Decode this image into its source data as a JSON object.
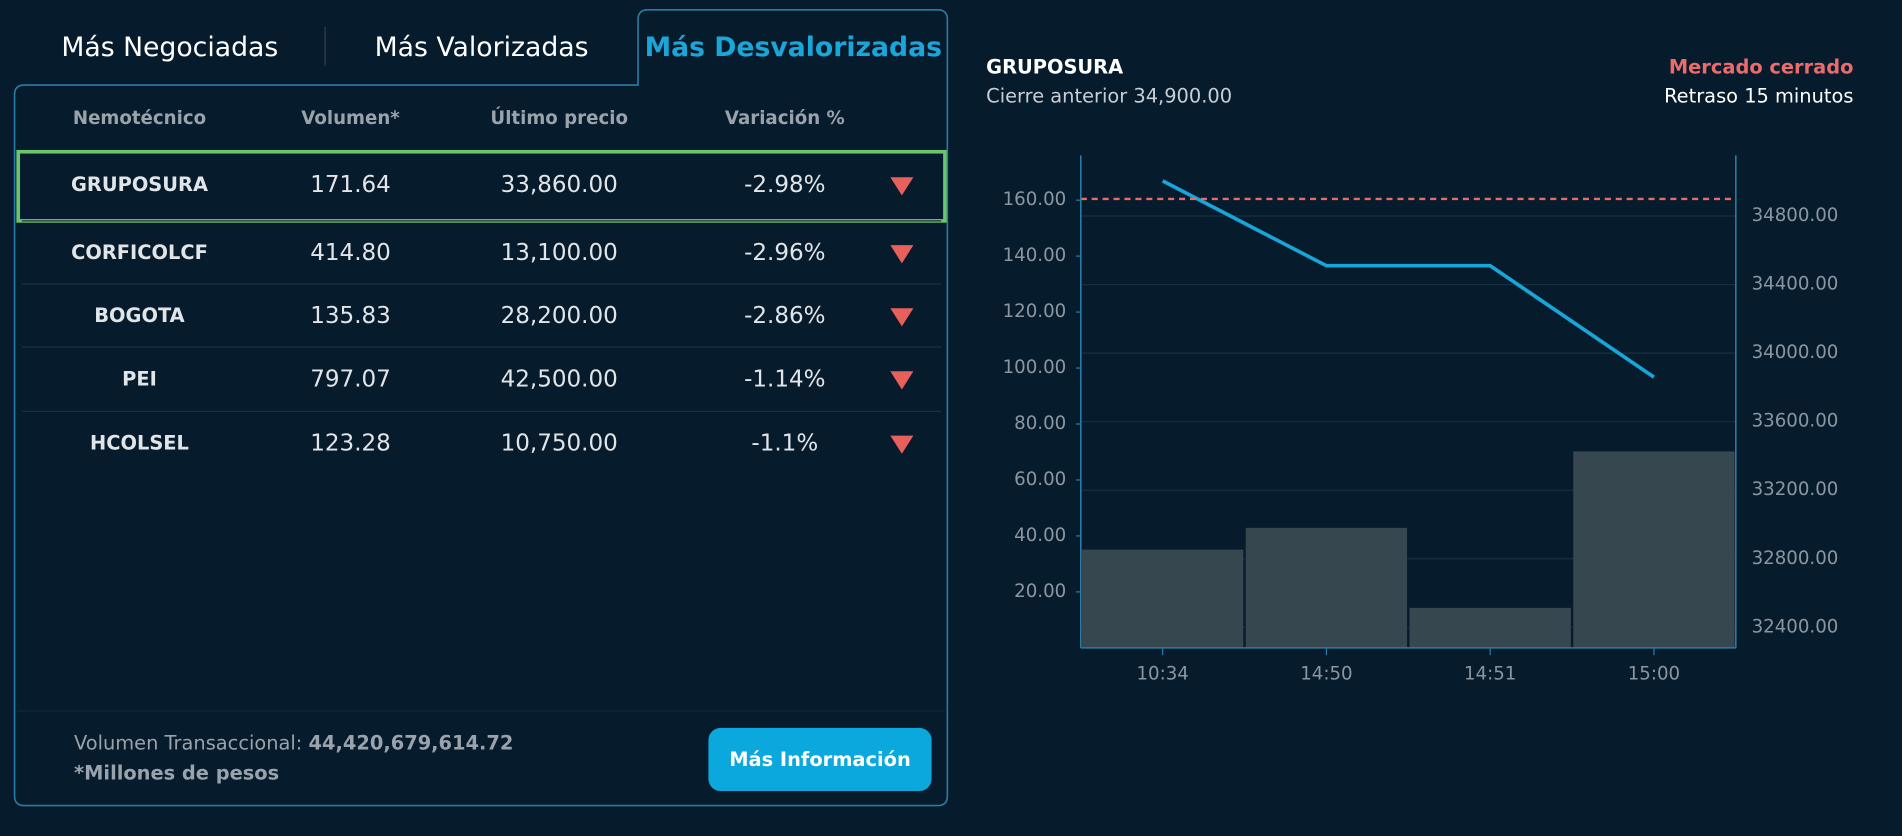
{
  "tabs": [
    "Más Negociadas",
    "Más Valorizadas",
    "Más Desvalorizadas"
  ],
  "active_tab": 2,
  "table": {
    "columns": [
      "Nemotécnico",
      "Volumen*",
      "Último precio",
      "Variación %"
    ],
    "rows": [
      [
        "GRUPOSURA",
        "171.64",
        "33,860.00",
        "-2.98%"
      ],
      [
        "CORFICOLCF",
        "414.80",
        "13,100.00",
        "-2.96%"
      ],
      [
        "BOGOTA",
        "135.83",
        "28,200.00",
        "-2.86%"
      ],
      [
        "PEI",
        "797.07",
        "42,500.00",
        "-1.14%"
      ],
      [
        "HCOLSEL",
        "123.28",
        "10,750.00",
        "-1.1%"
      ]
    ],
    "selected_row": 0
  },
  "footer": {
    "volume_label": "Volumen Transaccional:",
    "volume_value": "44,420,679,614.72",
    "note": "*Millones de pesos",
    "button": "Más Información"
  },
  "quote": {
    "symbol": "GRUPOSURA",
    "previous_close": "Cierre anterior 34,900.00",
    "status": "Mercado cerrado",
    "delay": "Retraso 15 minutos"
  },
  "chart_data": {
    "type": "combo",
    "categories": [
      "10:34",
      "14:50",
      "14:51",
      "15:00"
    ],
    "series": [
      {
        "type": "bar",
        "color": "#37474f",
        "values": [
          35.1,
          42.9,
          14.3,
          70.2
        ]
      },
      {
        "type": "line",
        "color": "#18a6d9",
        "axis": "y2",
        "values": [
          35005,
          34510,
          34510,
          33860
        ]
      }
    ],
    "reference_line": {
      "value": 34900,
      "axis": "y2",
      "color": "#e86a6a"
    },
    "ylim": [
      0,
      176
    ],
    "yticks": [
      {
        "value": 20,
        "label": "20.00"
      },
      {
        "value": 40,
        "label": "40.00"
      },
      {
        "value": 60,
        "label": "60.00"
      },
      {
        "value": 80,
        "label": "80.00"
      },
      {
        "value": 100,
        "label": "100.00"
      },
      {
        "value": 120,
        "label": "120.00"
      },
      {
        "value": 140,
        "label": "140.00"
      },
      {
        "value": 160,
        "label": "160.00"
      }
    ],
    "y2lim": [
      32280,
      35154
    ],
    "y2ticks": [
      {
        "value": 32400,
        "label": "32400.00"
      },
      {
        "value": 32800,
        "label": "32800.00"
      },
      {
        "value": 33200,
        "label": "33200.00"
      },
      {
        "value": 33600,
        "label": "33600.00"
      },
      {
        "value": 34000,
        "label": "34000.00"
      },
      {
        "value": 34400,
        "label": "34400.00"
      },
      {
        "value": 34800,
        "label": "34800.00"
      }
    ],
    "grid": "y2"
  }
}
